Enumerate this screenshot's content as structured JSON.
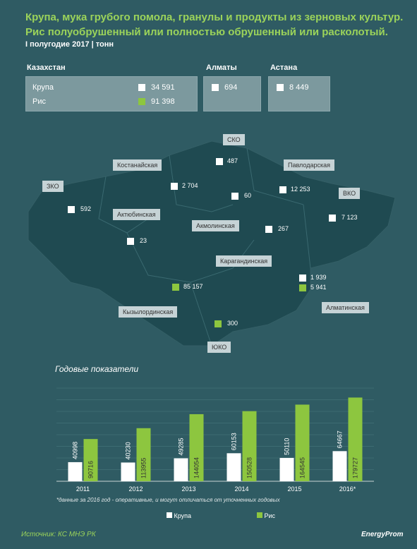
{
  "header": {
    "title_line1": "Крупа, мука грубого помола, гранулы и продукты из зерновых культур.",
    "title_line2": "Рис полуобрушенный или полностью обрушенный или расколотый.",
    "period": "I полугодие 2017 | тонн"
  },
  "summary": {
    "kz_title": "Казахстан",
    "kz_rows": [
      {
        "label": "Крупа",
        "value": "34 591",
        "color": "#ffffff"
      },
      {
        "label": "Рис",
        "value": "91 398",
        "color": "#8dc63f"
      }
    ],
    "almaty_title": "Алматы",
    "almaty_value": "694",
    "astana_title": "Астана",
    "astana_value": "8 449"
  },
  "map": {
    "regions": [
      {
        "name": "СКО",
        "value": "487"
      },
      {
        "name": "Костанайская",
        "value": "2 704"
      },
      {
        "name": "Павлодарская",
        "value": "12 253"
      },
      {
        "name": "ЗКО",
        "value": "592"
      },
      {
        "name": "ВКО",
        "value": "7 123"
      },
      {
        "name": "Актюбинская",
        "value": "23"
      },
      {
        "name": "Акмолинская",
        "value": "60"
      },
      {
        "name": "Карагандинская",
        "value": "267"
      },
      {
        "name": "Алматинская",
        "value": "1 939",
        "value2": "5 941"
      },
      {
        "name": "Кызылординская",
        "value": "85 157"
      },
      {
        "name": "ЮКО",
        "value": "300"
      }
    ]
  },
  "chart_data": {
    "type": "bar",
    "title": "Годовые показатели",
    "categories": [
      "2011",
      "2012",
      "2013",
      "2014",
      "2015",
      "2016*"
    ],
    "series": [
      {
        "name": "Крупа",
        "values": [
          40998,
          40230,
          49285,
          60153,
          50110,
          64667
        ],
        "color": "#ffffff"
      },
      {
        "name": "Рис",
        "values": [
          90716,
          113955,
          144054,
          150528,
          164545,
          179727
        ],
        "color": "#8dc63f"
      }
    ],
    "ylim": [
      0,
      200000
    ],
    "grid": true,
    "legend": "bottom",
    "note": "*данные за 2016 год - оперативные, и могут отличаться от уточненных годовых"
  },
  "footer": {
    "source": "Источник: КС МНЭ РК",
    "brand": "EnergyProm"
  }
}
